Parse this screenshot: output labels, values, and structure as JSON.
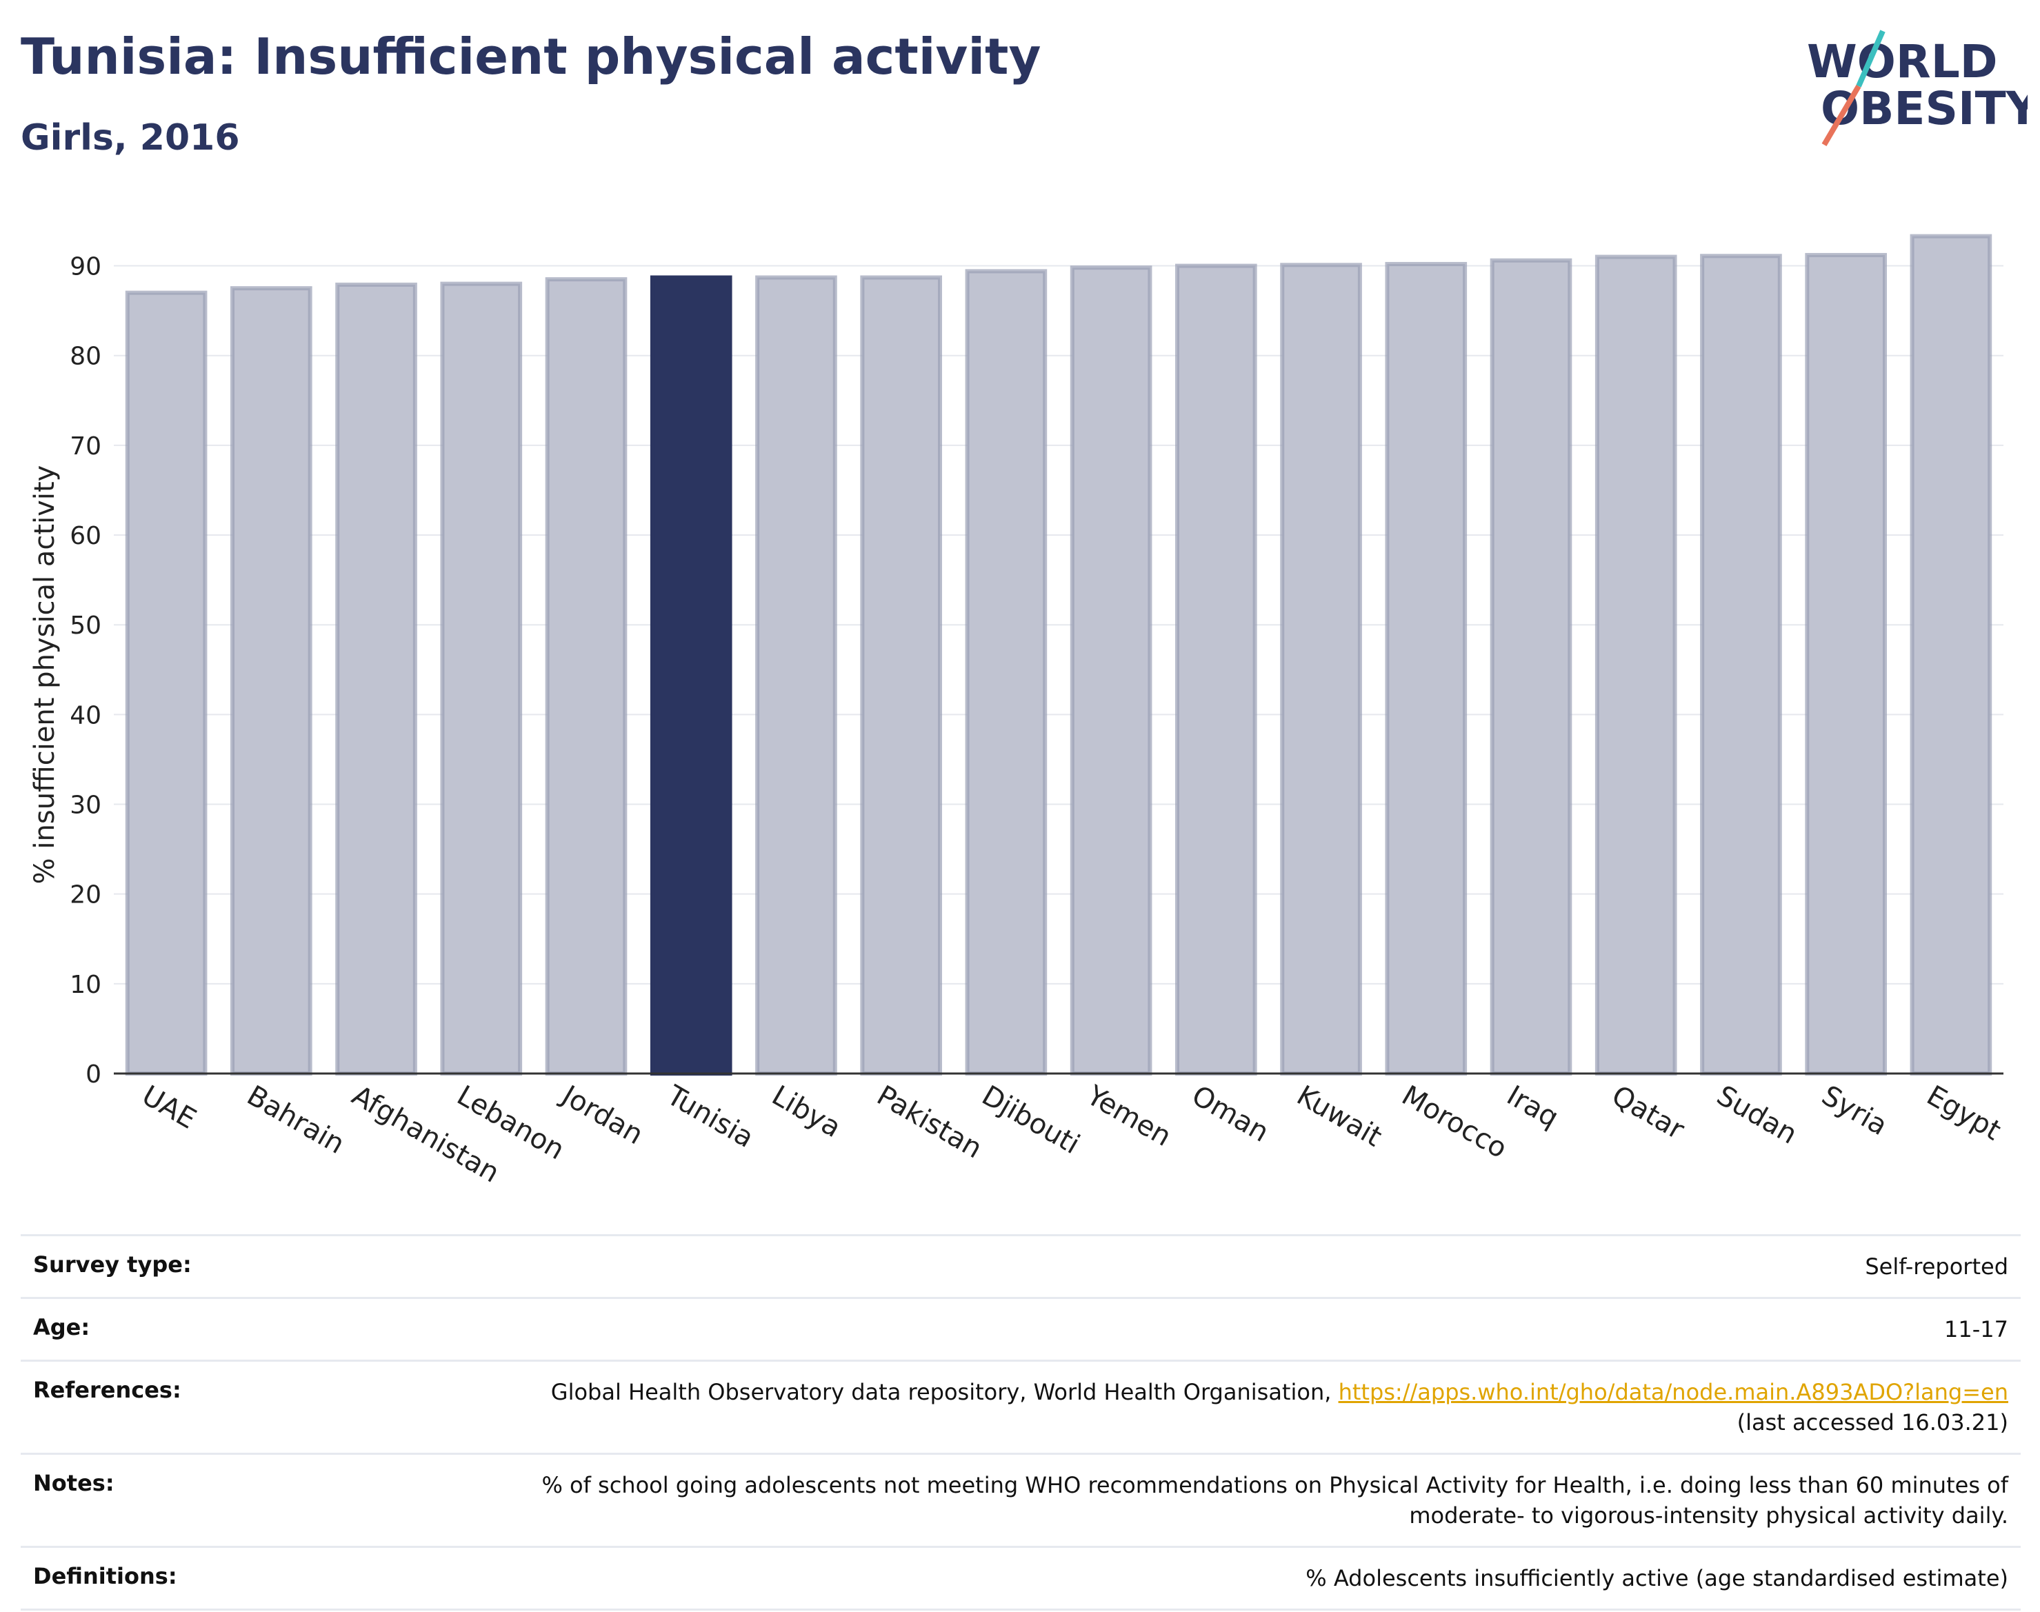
{
  "header": {
    "title": "Tunisia: Insufficient physical activity",
    "subtitle": "Girls, 2016"
  },
  "logo": {
    "line1": "WORLD",
    "line2": "OBESITY",
    "colors": {
      "text": "#2b3560",
      "slash_teal": "#3bbfbf",
      "slash_coral": "#e8735a"
    }
  },
  "chart_data": {
    "type": "bar",
    "categories": [
      "UAE",
      "Bahrain",
      "Afghanistan",
      "Lebanon",
      "Jordan",
      "Tunisia",
      "Libya",
      "Pakistan",
      "Djibouti",
      "Yemen",
      "Oman",
      "Kuwait",
      "Morocco",
      "Iraq",
      "Qatar",
      "Sudan",
      "Syria",
      "Egypt"
    ],
    "values": [
      87.0,
      87.5,
      87.9,
      88.0,
      88.5,
      88.7,
      88.7,
      88.7,
      89.4,
      89.8,
      90.0,
      90.1,
      90.2,
      90.6,
      91.0,
      91.1,
      91.2,
      93.3
    ],
    "highlight": "Tunisia",
    "ylabel": "% insufficient physical activity",
    "ylim": [
      0,
      93.5
    ],
    "yticks": [
      0,
      10,
      20,
      30,
      40,
      50,
      60,
      70,
      80,
      90
    ],
    "grid": true,
    "colors": {
      "bar": "#c0c3d1",
      "bar_stroke": "#9a9fb5",
      "highlight": "#2b3560"
    }
  },
  "info": {
    "rows": [
      {
        "key": "Survey type:",
        "value": "Self-reported"
      },
      {
        "key": "Age:",
        "value": "11-17"
      },
      {
        "key": "References:",
        "value": "Global Health Observatory data repository, World Health Organisation,",
        "link": "https://apps.who.int/gho/data/node.main.A893ADO?lang=en",
        "value2": "(last accessed 16.03.21)"
      },
      {
        "key": "Notes:",
        "value": "% of school going adolescents not meeting WHO recommendations on Physical Activity for Health, i.e. doing less than 60 minutes of",
        "value2": "moderate- to vigorous-intensity physical activity daily."
      },
      {
        "key": "Definitions:",
        "value": "% Adolescents insufficiently active (age standardised estimate)"
      }
    ]
  }
}
